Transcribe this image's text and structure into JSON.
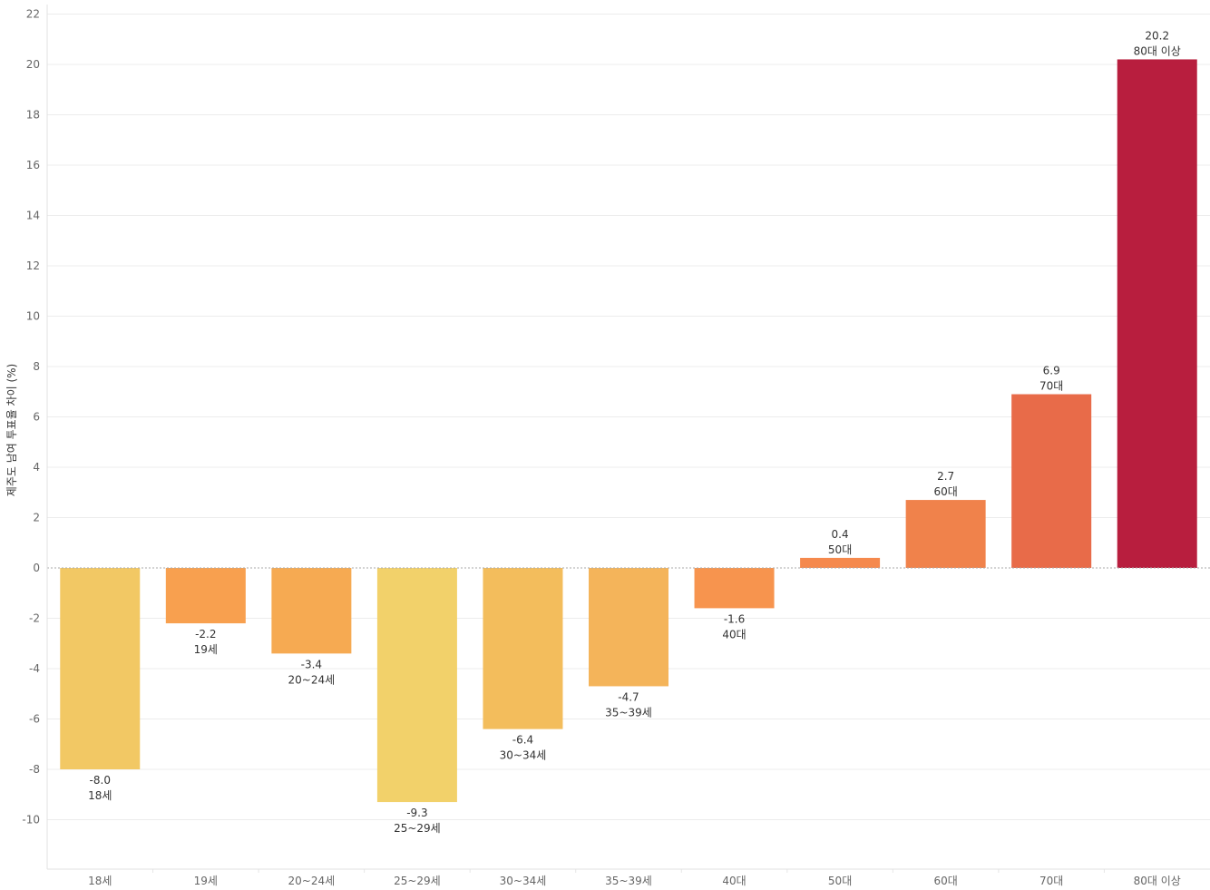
{
  "chart_data": {
    "type": "bar",
    "ylabel": "제주도 남여 투표율 차이 (%)",
    "xlabel": "",
    "ylim": [
      -12,
      22
    ],
    "yticks": [
      -10,
      -8,
      -6,
      -4,
      -2,
      0,
      2,
      4,
      6,
      8,
      10,
      12,
      14,
      16,
      18,
      20,
      22
    ],
    "grid": true,
    "categories": [
      "18세",
      "19세",
      "20~24세",
      "25~29세",
      "30~34세",
      "35~39세",
      "40대",
      "50대",
      "60대",
      "70대",
      "80대 이상"
    ],
    "values": [
      -8.0,
      -2.2,
      -3.4,
      -9.3,
      -6.4,
      -4.7,
      -1.6,
      0.4,
      2.7,
      6.9,
      20.2
    ],
    "value_labels": [
      "-8.0",
      "-2.2",
      "-3.4",
      "-9.3",
      "-6.4",
      "-4.7",
      "-1.6",
      "0.4",
      "2.7",
      "6.9",
      "20.2"
    ],
    "colors": [
      "#f2c864",
      "#f8a04f",
      "#f6aa52",
      "#f2d16a",
      "#f3bd5c",
      "#f4b45a",
      "#f7944e",
      "#f5894d",
      "#f0824b",
      "#e86b49",
      "#b81e3e"
    ]
  }
}
